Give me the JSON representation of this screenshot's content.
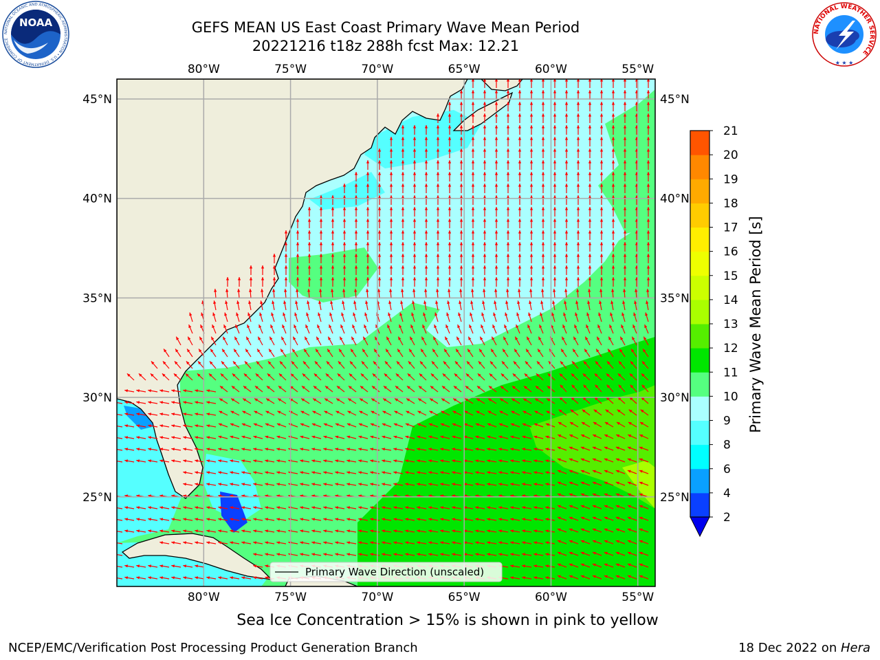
{
  "header": {
    "title_line1": "GEFS MEAN US East Coast Primary Wave Mean Period",
    "title_line2": "20221216 t18z 288h fcst   Max: 12.21"
  },
  "logos": {
    "noaa_text": "NOAA",
    "noaa_ring_text": "NATIONAL OCEANIC AND ATMOSPHERIC ADMINISTRATION • U.S. DEPARTMENT OF COMMERCE",
    "nws_ring_text": "NATIONAL WEATHER SERVICE"
  },
  "map": {
    "region": "US East Coast",
    "lon_range": [
      -85,
      -54
    ],
    "lat_range": [
      20.5,
      46
    ],
    "lon_ticks": [
      "80°W",
      "75°W",
      "70°W",
      "65°W",
      "60°W",
      "55°W"
    ],
    "lat_ticks": [
      "45°N",
      "40°N",
      "35°N",
      "30°N",
      "25°N"
    ],
    "grid": true,
    "land_color": "#efeedc",
    "arrow_color": "#ff0000",
    "legend_label": "Primary Wave Direction (unscaled)",
    "legend_position": "bottom-center"
  },
  "colorbar": {
    "label": "Primary Wave Mean Period [s]",
    "ticks": [
      "2",
      "4",
      "6",
      "8",
      "9",
      "10",
      "11",
      "12",
      "13",
      "14",
      "15",
      "16",
      "17",
      "18",
      "19",
      "20",
      "21"
    ],
    "colors": [
      "#0a40ff",
      "#0aa0ff",
      "#00ffff",
      "#55ffff",
      "#aaffff",
      "#55ff80",
      "#00e600",
      "#55ee00",
      "#aaff00",
      "#ccff00",
      "#eeff00",
      "#ffee00",
      "#ffcc00",
      "#ffaa00",
      "#ff8800",
      "#ff5500",
      "#ff2200",
      "#ff0000"
    ],
    "extend_color": "#0000ee"
  },
  "footer": {
    "subcaption": "Sea Ice Concentration > 15% is shown in pink to yellow",
    "credit": "NCEP/EMC/Verification Post Processing Product Generation Branch",
    "date": "18 Dec 2022 on ",
    "machine": "Hera"
  }
}
